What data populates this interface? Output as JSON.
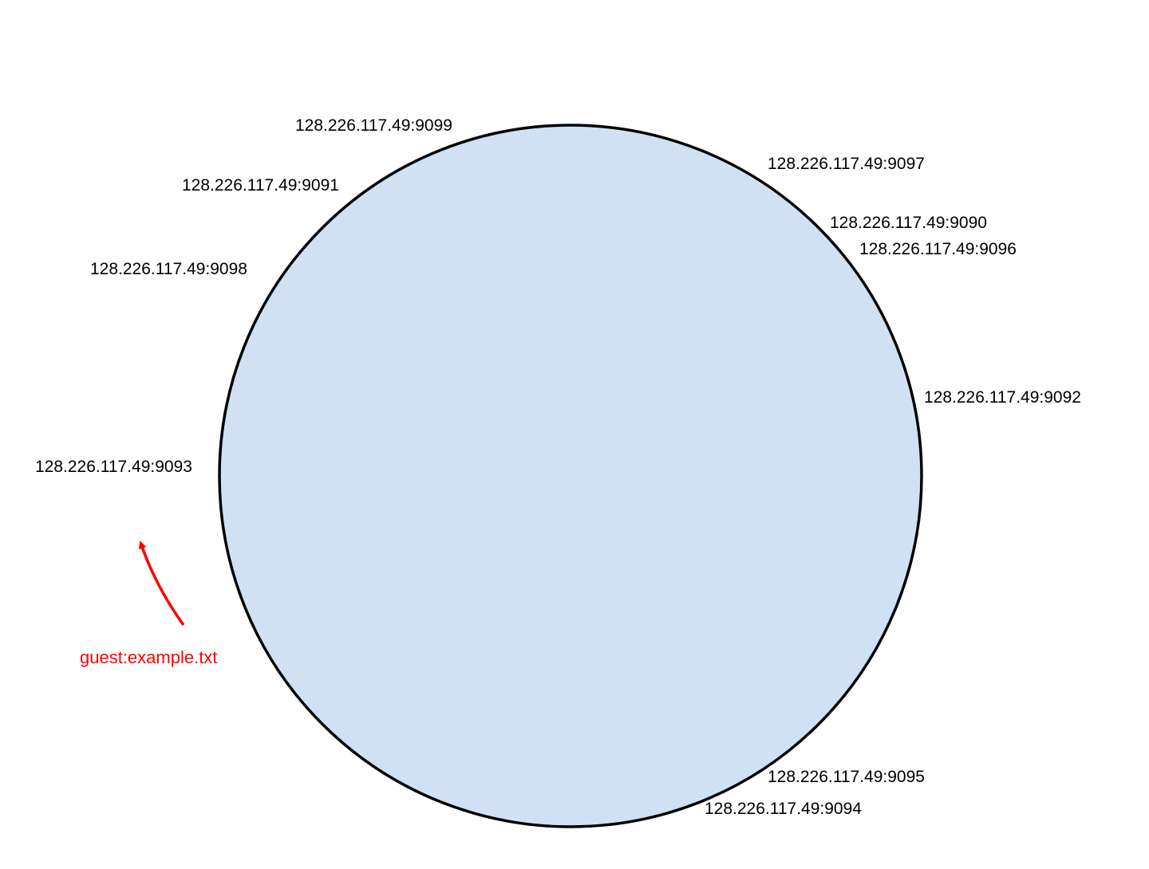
{
  "ring": {
    "fill_color": "#cfe1f3",
    "stroke_color": "#000000"
  },
  "nodes": [
    {
      "label": "128.226.117.49:9099"
    },
    {
      "label": "128.226.117.49:9097"
    },
    {
      "label": "128.226.117.49:9091"
    },
    {
      "label": "128.226.117.49:9090"
    },
    {
      "label": "128.226.117.49:9096"
    },
    {
      "label": "128.226.117.49:9098"
    },
    {
      "label": "128.226.117.49:9092"
    },
    {
      "label": "128.226.117.49:9093"
    },
    {
      "label": "128.226.117.49:9095"
    },
    {
      "label": "128.226.117.49:9094"
    }
  ],
  "file": {
    "label": "guest:example.txt",
    "color": "#ff0000",
    "arrow_icon": "curved-arrow-icon"
  }
}
